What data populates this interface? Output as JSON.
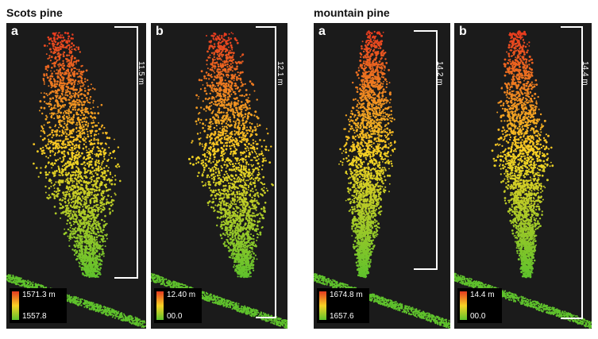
{
  "groups": [
    {
      "title": "Scots pine",
      "panels": [
        {
          "letter": "a",
          "height": "11.5 m",
          "legend_max": "1571.3 m",
          "legend_min": "1557.8"
        },
        {
          "letter": "b",
          "height": "12.1 m",
          "legend_max": "12.40 m",
          "legend_min": "00.0"
        }
      ]
    },
    {
      "title": "mountain pine",
      "panels": [
        {
          "letter": "a",
          "height": "14.2 m",
          "legend_max": "1674.8 m",
          "legend_min": "1657.6"
        },
        {
          "letter": "b",
          "height": "14.4 m",
          "legend_max": "14.4 m",
          "legend_min": "00.0"
        }
      ]
    }
  ],
  "colors": {
    "high": "#e63a1f",
    "mid": "#f7d224",
    "low": "#5fc22c",
    "background": "#1b1b1b"
  }
}
